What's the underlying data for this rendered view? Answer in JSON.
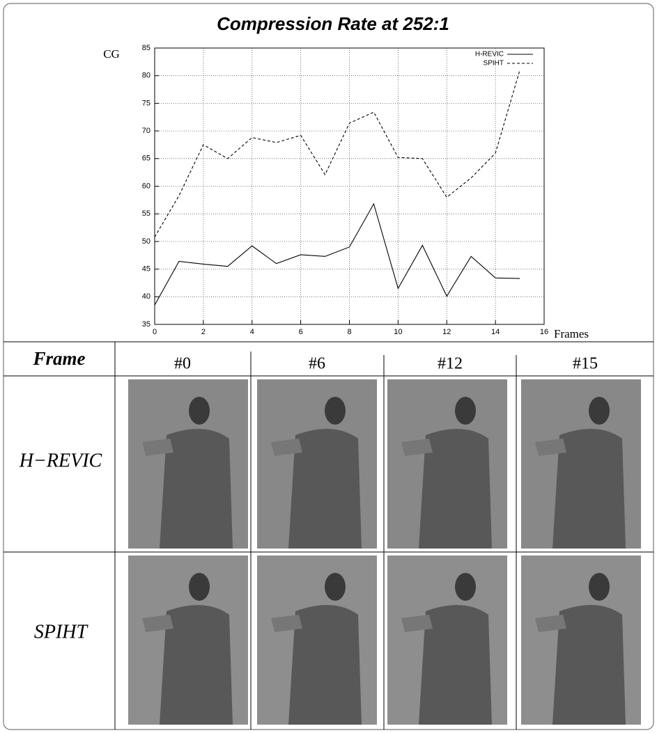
{
  "chart_data": {
    "type": "line",
    "title": "Compression Rate at 252:1",
    "ylabel": "CG",
    "xlabel": "Frames",
    "x": [
      0,
      1,
      2,
      3,
      4,
      5,
      6,
      7,
      8,
      9,
      10,
      11,
      12,
      13,
      14,
      15
    ],
    "series": [
      {
        "name": "H-REVIC",
        "color": "#000000",
        "linestyle": "solid",
        "values": [
          38.5,
          46.4,
          45.9,
          45.5,
          49.2,
          46.0,
          47.6,
          47.3,
          49.0,
          56.8,
          41.5,
          49.3,
          40.1,
          47.3,
          43.4,
          43.3
        ]
      },
      {
        "name": "SPIHT",
        "color": "#000000",
        "linestyle": "dashed",
        "values": [
          50.8,
          58.3,
          67.5,
          65.0,
          68.8,
          67.9,
          69.2,
          62.1,
          71.4,
          73.4,
          65.2,
          65.0,
          58.0,
          61.5,
          66.0,
          81.0
        ]
      }
    ],
    "xlim": [
      0,
      16
    ],
    "xticks": [
      0,
      2,
      4,
      6,
      8,
      10,
      12,
      14,
      16
    ],
    "ylim": [
      35,
      85
    ],
    "yticks": [
      35,
      40,
      45,
      50,
      55,
      60,
      65,
      70,
      75,
      80,
      85
    ],
    "grid": true,
    "legend": "top-right"
  },
  "table": {
    "header": [
      "Frame",
      "#0",
      "#6",
      "#12",
      "#15"
    ],
    "rows": [
      "H−REVIC",
      "SPIHT"
    ]
  }
}
